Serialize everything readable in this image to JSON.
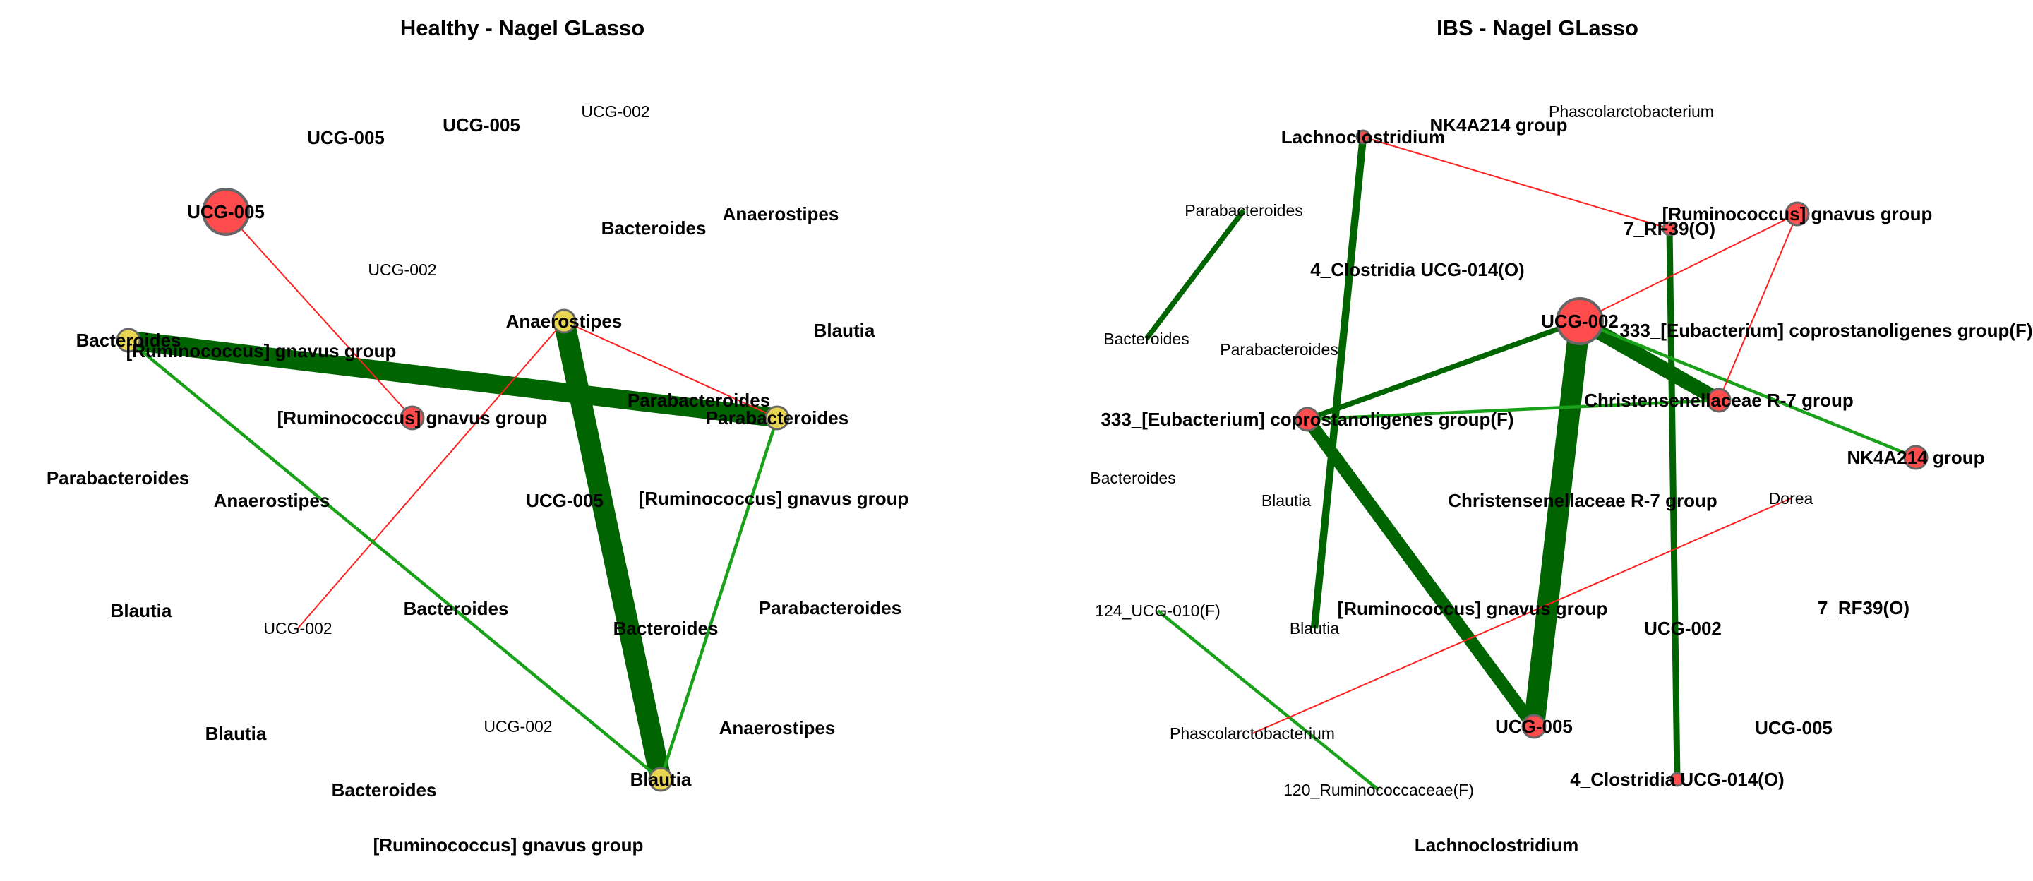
{
  "colors": {
    "positive_edge": "#006400",
    "positive_edge_thin": "#1aa11a",
    "negative_edge": "#ff2020",
    "node_red": "#ff4c4c",
    "node_yellow": "#e8d552",
    "node_border": "#666666"
  },
  "panels": [
    {
      "title": "Healthy - Nagel GLasso",
      "labels": [
        {
          "text": "UCG-005",
          "bold": true
        },
        {
          "text": "UCG-005",
          "bold": true
        },
        {
          "text": "UCG-002",
          "bold": false
        },
        {
          "text": "UCG-005",
          "bold": true
        },
        {
          "text": "Bacteroides",
          "bold": true
        },
        {
          "text": "Anaerostipes",
          "bold": true
        },
        {
          "text": "UCG-002",
          "bold": false
        },
        {
          "text": "Anaerostipes",
          "bold": true
        },
        {
          "text": "Blautia",
          "bold": true
        },
        {
          "text": "Bacteroides",
          "bold": true
        },
        {
          "text": "[Ruminococcus] gnavus group",
          "bold": true
        },
        {
          "text": "Parabacteroides",
          "bold": true
        },
        {
          "text": "[Ruminococcus] gnavus group",
          "bold": true
        },
        {
          "text": "Parabacteroides",
          "bold": true
        },
        {
          "text": "Parabacteroides",
          "bold": true
        },
        {
          "text": "Anaerostipes",
          "bold": true
        },
        {
          "text": "UCG-005",
          "bold": true
        },
        {
          "text": "[Ruminococcus] gnavus group",
          "bold": true
        },
        {
          "text": "Blautia",
          "bold": true
        },
        {
          "text": "Bacteroides",
          "bold": true
        },
        {
          "text": "Parabacteroides",
          "bold": true
        },
        {
          "text": "UCG-002",
          "bold": false
        },
        {
          "text": "Bacteroides",
          "bold": true
        },
        {
          "text": "Blautia",
          "bold": true
        },
        {
          "text": "UCG-002",
          "bold": false
        },
        {
          "text": "Anaerostipes",
          "bold": true
        },
        {
          "text": "Blautia",
          "bold": true
        },
        {
          "text": "Bacteroides",
          "bold": true
        },
        {
          "text": "[Ruminococcus] gnavus group",
          "bold": true
        }
      ],
      "nodes": [
        {
          "label_index": 3,
          "size": "large",
          "color": "red"
        },
        {
          "label_index": 9,
          "size": "small",
          "color": "yellow"
        },
        {
          "label_index": 7,
          "size": "small",
          "color": "yellow"
        },
        {
          "label_index": 12,
          "size": "small",
          "color": "red"
        },
        {
          "label_index": 13,
          "size": "small",
          "color": "yellow"
        },
        {
          "label_index": 26,
          "size": "small",
          "color": "yellow"
        }
      ],
      "edges": [
        {
          "from": 9,
          "to": 13,
          "sign": "positive",
          "weight": 0.9
        },
        {
          "from": 7,
          "to": 26,
          "sign": "positive",
          "weight": 1.0
        },
        {
          "from": 3,
          "to": 12,
          "sign": "negative",
          "weight": 0.15
        },
        {
          "from": 7,
          "to": 13,
          "sign": "negative",
          "weight": 0.15
        },
        {
          "from": 7,
          "to": 21,
          "sign": "negative",
          "weight": 0.15
        },
        {
          "from": 9,
          "to": 26,
          "sign": "positive",
          "weight": 0.15
        },
        {
          "from": 13,
          "to": 26,
          "sign": "positive",
          "weight": 0.15
        }
      ]
    },
    {
      "title": "IBS - Nagel GLasso",
      "labels": [
        {
          "text": "Lachnoclostridium",
          "bold": true
        },
        {
          "text": "NK4A214 group",
          "bold": true
        },
        {
          "text": "Phascolarctobacterium",
          "bold": false
        },
        {
          "text": "Parabacteroides",
          "bold": false
        },
        {
          "text": "[Ruminococcus] gnavus group",
          "bold": true
        },
        {
          "text": "7_RF39(O)",
          "bold": true
        },
        {
          "text": "4_Clostridia UCG-014(O)",
          "bold": true
        },
        {
          "text": "UCG-002",
          "bold": true
        },
        {
          "text": "333_[Eubacterium] coprostanoligenes group(F)",
          "bold": true
        },
        {
          "text": "Bacteroides",
          "bold": false
        },
        {
          "text": "Parabacteroides",
          "bold": false
        },
        {
          "text": "Christensenellaceae R-7 group",
          "bold": true
        },
        {
          "text": "333_[Eubacterium] coprostanoligenes group(F)",
          "bold": true
        },
        {
          "text": "NK4A214 group",
          "bold": true
        },
        {
          "text": "Bacteroides",
          "bold": false
        },
        {
          "text": "Blautia",
          "bold": false
        },
        {
          "text": "Christensenellaceae R-7 group",
          "bold": true
        },
        {
          "text": "Dorea",
          "bold": false
        },
        {
          "text": "124_UCG-010(F)",
          "bold": false
        },
        {
          "text": "[Ruminococcus] gnavus group",
          "bold": true
        },
        {
          "text": "7_RF39(O)",
          "bold": true
        },
        {
          "text": "Blautia",
          "bold": false
        },
        {
          "text": "UCG-002",
          "bold": true
        },
        {
          "text": "UCG-005",
          "bold": true
        },
        {
          "text": "Phascolarctobacterium",
          "bold": false
        },
        {
          "text": "UCG-005",
          "bold": true
        },
        {
          "text": "4_Clostridia UCG-014(O)",
          "bold": true
        },
        {
          "text": "120_Ruminococcaceae(F)",
          "bold": false
        },
        {
          "text": "Lachnoclostridium",
          "bold": true
        }
      ],
      "nodes": [
        {
          "label_index": 0,
          "size": "tiny",
          "color": "red"
        },
        {
          "label_index": 4,
          "size": "small",
          "color": "red"
        },
        {
          "label_index": 5,
          "size": "tiny",
          "color": "red"
        },
        {
          "label_index": 7,
          "size": "large",
          "color": "red"
        },
        {
          "label_index": 11,
          "size": "small",
          "color": "red"
        },
        {
          "label_index": 12,
          "size": "small",
          "color": "red"
        },
        {
          "label_index": 13,
          "size": "small",
          "color": "red"
        },
        {
          "label_index": 23,
          "size": "small",
          "color": "red"
        },
        {
          "label_index": 26,
          "size": "tiny",
          "color": "red"
        }
      ],
      "edges": [
        {
          "from": 7,
          "to": 23,
          "sign": "positive",
          "weight": 1.0
        },
        {
          "from": 7,
          "to": 11,
          "sign": "positive",
          "weight": 0.7
        },
        {
          "from": 12,
          "to": 23,
          "sign": "positive",
          "weight": 0.6
        },
        {
          "from": 0,
          "to": 21,
          "sign": "positive",
          "weight": 0.35
        },
        {
          "from": 5,
          "to": 26,
          "sign": "positive",
          "weight": 0.3
        },
        {
          "from": 3,
          "to": 9,
          "sign": "positive",
          "weight": 0.25
        },
        {
          "from": 7,
          "to": 12,
          "sign": "positive",
          "weight": 0.25
        },
        {
          "from": 12,
          "to": 11,
          "sign": "positive",
          "weight": 0.15
        },
        {
          "from": 7,
          "to": 13,
          "sign": "positive",
          "weight": 0.15
        },
        {
          "from": 18,
          "to": 27,
          "sign": "positive",
          "weight": 0.15
        },
        {
          "from": 0,
          "to": 5,
          "sign": "negative",
          "weight": 0.15
        },
        {
          "from": 7,
          "to": 4,
          "sign": "negative",
          "weight": 0.15
        },
        {
          "from": 4,
          "to": 11,
          "sign": "negative",
          "weight": 0.15
        },
        {
          "from": 17,
          "to": 24,
          "sign": "negative",
          "weight": 0.15
        }
      ]
    }
  ]
}
